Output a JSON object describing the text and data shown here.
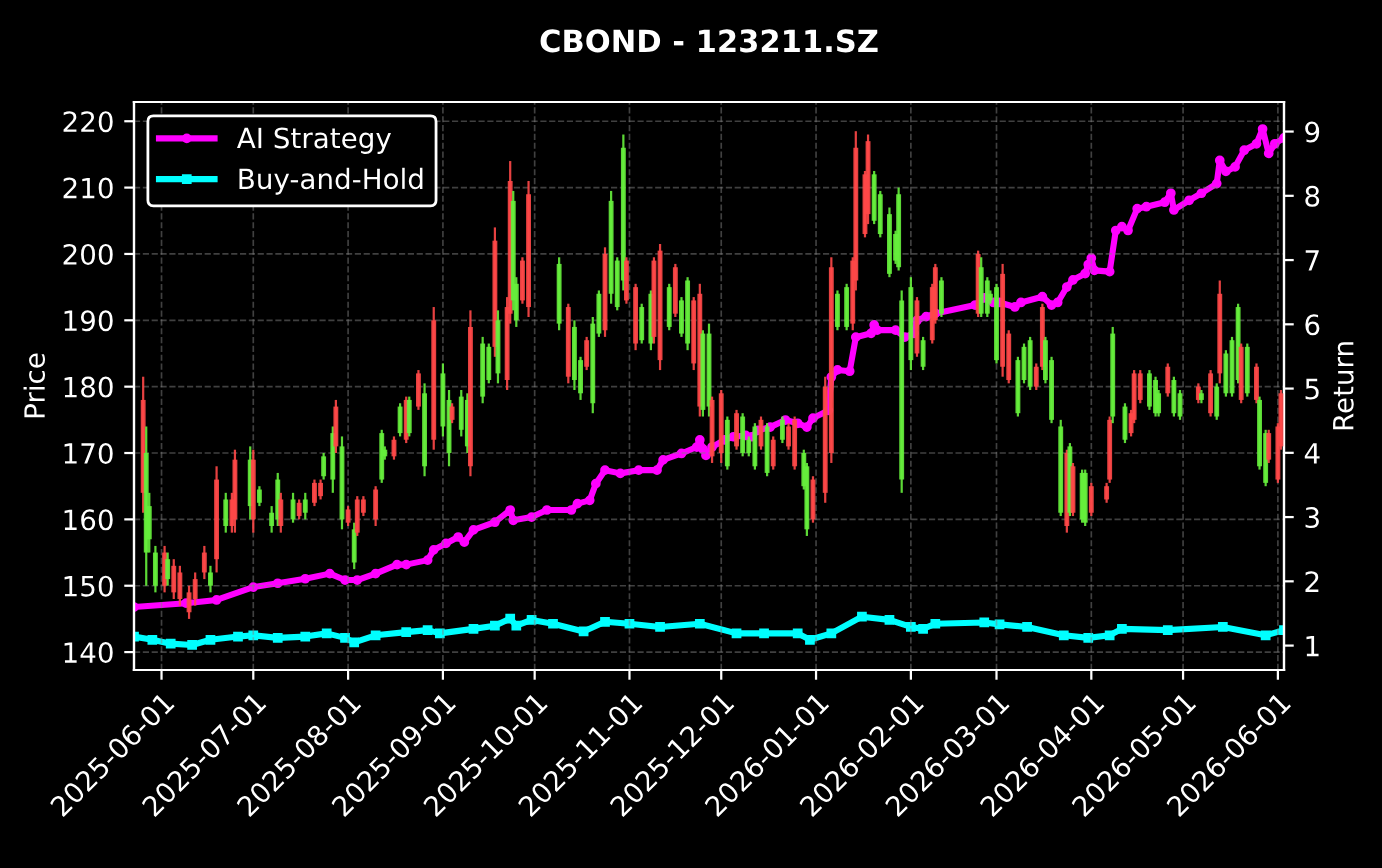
{
  "chart_data": {
    "type": "candlestick",
    "title": "CBOND - 123211.SZ",
    "ylabel": "Price",
    "y2label": "Return",
    "x": [
      "2025-05-26",
      "2025-05-27",
      "2025-05-28",
      "2025-05-30",
      "2025-06-02",
      "2025-06-03",
      "2025-06-05",
      "2025-06-07",
      "2025-06-10",
      "2025-06-12",
      "2025-06-15",
      "2025-06-17",
      "2025-06-19",
      "2025-06-22",
      "2025-06-24",
      "2025-06-25",
      "2025-06-30",
      "2025-07-01",
      "2025-07-03",
      "2025-07-07",
      "2025-07-09",
      "2025-07-10",
      "2025-07-14",
      "2025-07-16",
      "2025-07-18",
      "2025-07-21",
      "2025-07-23",
      "2025-07-24",
      "2025-07-27",
      "2025-07-28",
      "2025-07-30",
      "2025-08-01",
      "2025-08-03",
      "2025-08-04",
      "2025-08-06",
      "2025-08-10",
      "2025-08-12",
      "2025-08-13",
      "2025-08-16",
      "2025-08-18",
      "2025-08-20",
      "2025-08-21",
      "2025-08-24",
      "2025-08-26",
      "2025-08-29",
      "2025-09-01",
      "2025-09-03",
      "2025-09-04",
      "2025-09-07",
      "2025-09-09",
      "2025-09-10",
      "2025-09-14",
      "2025-09-16",
      "2025-09-18",
      "2025-09-19",
      "2025-09-22",
      "2025-09-23",
      "2025-09-24",
      "2025-09-25",
      "2025-09-27",
      "2025-09-29",
      "2025-10-09",
      "2025-10-12",
      "2025-10-14",
      "2025-10-16",
      "2025-10-18",
      "2025-10-20",
      "2025-10-22",
      "2025-10-24",
      "2025-10-26",
      "2025-10-28",
      "2025-10-30",
      "2025-10-31",
      "2025-11-03",
      "2025-11-05",
      "2025-11-08",
      "2025-11-09",
      "2025-11-11",
      "2025-11-14",
      "2025-11-16",
      "2025-11-18",
      "2025-11-20",
      "2025-11-22",
      "2025-11-24",
      "2025-11-25",
      "2025-11-27",
      "2025-11-28",
      "2025-12-01",
      "2025-12-03",
      "2025-12-06",
      "2025-12-08",
      "2025-12-10",
      "2025-12-12",
      "2025-12-14",
      "2025-12-16",
      "2025-12-18",
      "2025-12-21",
      "2025-12-23",
      "2025-12-25",
      "2025-12-28",
      "2025-12-29",
      "2025-12-31",
      "2026-01-04",
      "2026-01-06",
      "2026-01-08",
      "2026-01-11",
      "2026-01-13",
      "2026-01-14",
      "2026-01-17",
      "2026-01-18",
      "2026-01-20",
      "2026-01-22",
      "2026-01-25",
      "2026-01-27",
      "2026-01-28",
      "2026-01-29",
      "2026-02-01",
      "2026-02-03",
      "2026-02-05",
      "2026-02-08",
      "2026-02-09",
      "2026-02-11",
      "2026-02-23",
      "2026-02-24",
      "2026-02-26",
      "2026-02-27",
      "2026-03-01",
      "2026-03-03",
      "2026-03-05",
      "2026-03-08",
      "2026-03-10",
      "2026-03-12",
      "2026-03-14",
      "2026-03-16",
      "2026-03-17",
      "2026-03-19",
      "2026-03-22",
      "2026-03-24",
      "2026-03-25",
      "2026-03-26",
      "2026-03-29",
      "2026-03-30",
      "2026-04-01",
      "2026-04-06",
      "2026-04-07",
      "2026-04-08",
      "2026-04-12",
      "2026-04-14",
      "2026-04-15",
      "2026-04-17",
      "2026-04-20",
      "2026-04-22",
      "2026-04-23",
      "2026-04-26",
      "2026-04-28",
      "2026-04-30",
      "2026-05-06",
      "2026-05-07",
      "2026-05-10",
      "2026-05-12",
      "2026-05-13",
      "2026-05-15",
      "2026-05-17",
      "2026-05-19",
      "2026-05-20",
      "2026-05-22",
      "2026-05-25",
      "2026-05-26",
      "2026-05-28",
      "2026-05-29",
      "2026-06-01",
      "2026-06-02"
    ],
    "ohlc": [
      [
        178,
        181.5,
        161,
        164
      ],
      [
        155,
        174,
        150,
        170
      ],
      [
        157,
        164,
        155,
        162
      ],
      [
        150,
        156,
        149,
        155
      ],
      [
        155,
        156,
        149,
        150
      ],
      [
        151,
        155,
        150,
        154
      ],
      [
        153,
        154,
        148,
        149
      ],
      [
        152,
        153,
        147,
        148
      ],
      [
        149,
        150,
        145,
        146
      ],
      [
        151,
        152,
        147,
        148
      ],
      [
        155,
        156,
        151,
        152
      ],
      [
        150,
        153,
        149,
        152
      ],
      [
        166,
        168,
        152,
        154
      ],
      [
        159,
        164,
        158,
        163
      ],
      [
        163,
        164,
        158,
        159
      ],
      [
        169,
        170.5,
        158,
        160
      ],
      [
        162,
        171,
        160,
        169
      ],
      [
        169,
        170.5,
        158,
        160
      ],
      [
        162.5,
        165,
        162,
        164.5
      ],
      [
        159,
        162,
        158,
        161
      ],
      [
        160,
        167,
        159,
        166
      ],
      [
        163,
        164,
        158,
        159
      ],
      [
        160,
        164,
        159.5,
        163
      ],
      [
        162.5,
        163,
        160,
        160.5
      ],
      [
        161,
        164,
        160,
        163
      ],
      [
        165.5,
        166,
        162,
        162.5
      ],
      [
        165.5,
        166,
        163,
        163.5
      ],
      [
        166.5,
        170,
        166,
        169.5
      ],
      [
        166,
        174,
        164,
        173
      ],
      [
        177,
        178,
        170,
        171
      ],
      [
        160,
        172.5,
        158.5,
        171
      ],
      [
        161.5,
        162,
        159,
        159.5
      ],
      [
        153.5,
        159.5,
        152.5,
        158.5
      ],
      [
        163,
        163.5,
        157.5,
        158
      ],
      [
        163,
        163.5,
        160.5,
        161
      ],
      [
        164.5,
        165,
        159,
        160
      ],
      [
        166,
        173.5,
        165.5,
        173
      ],
      [
        169.5,
        171,
        169,
        170.5
      ],
      [
        172,
        172.5,
        169,
        169.5
      ],
      [
        173,
        177.5,
        172.5,
        177
      ],
      [
        178,
        178.5,
        171.5,
        172
      ],
      [
        173,
        178.5,
        172.5,
        178
      ],
      [
        182,
        182.5,
        176.5,
        177
      ],
      [
        168,
        180.5,
        166.5,
        179
      ],
      [
        190,
        192,
        170.5,
        172
      ],
      [
        174,
        183.5,
        172.5,
        182
      ],
      [
        170,
        179.5,
        168,
        178
      ],
      [
        177,
        177.5,
        174.5,
        175
      ],
      [
        173.5,
        179.5,
        172.5,
        178.5
      ],
      [
        171,
        179,
        170,
        178
      ],
      [
        189,
        191.5,
        166.5,
        168
      ],
      [
        178.5,
        187.5,
        177.5,
        186.5
      ],
      [
        181,
        186.5,
        180.5,
        186
      ],
      [
        202,
        204,
        184.5,
        186
      ],
      [
        182,
        191.5,
        180.5,
        190
      ],
      [
        192,
        193.5,
        179.5,
        181
      ],
      [
        211,
        214,
        189.5,
        191
      ],
      [
        193,
        209.5,
        191.5,
        208
      ],
      [
        190,
        196.5,
        189,
        195.5
      ],
      [
        199,
        199.5,
        192.5,
        193
      ],
      [
        209,
        211,
        190.5,
        192
      ],
      [
        189.5,
        199.5,
        188.5,
        198.5
      ],
      [
        192,
        192.5,
        180.5,
        181.5
      ],
      [
        181,
        190,
        179.5,
        189
      ],
      [
        179,
        184.5,
        178,
        184
      ],
      [
        187,
        187.5,
        182.5,
        183
      ],
      [
        177.5,
        190.5,
        176,
        189.5
      ],
      [
        188,
        194.5,
        187.5,
        194
      ],
      [
        200,
        201,
        187.5,
        188.5
      ],
      [
        194,
        209.5,
        192.5,
        208
      ],
      [
        192,
        199.5,
        191.5,
        199
      ],
      [
        196,
        218,
        194.5,
        216
      ],
      [
        199,
        199.5,
        192.5,
        193
      ],
      [
        195,
        195.5,
        185.5,
        186.5
      ],
      [
        187,
        192.5,
        186.5,
        192
      ],
      [
        186.5,
        194.5,
        185.5,
        194
      ],
      [
        199,
        199.5,
        186.5,
        187.5
      ],
      [
        200.5,
        201.5,
        182.5,
        184
      ],
      [
        189,
        195.5,
        188.5,
        195
      ],
      [
        198,
        198.5,
        190.5,
        191
      ],
      [
        188,
        193.5,
        187.5,
        193
      ],
      [
        186.5,
        196.5,
        185.5,
        196
      ],
      [
        193,
        193.5,
        182.5,
        183.5
      ],
      [
        194,
        195.5,
        175.5,
        177
      ],
      [
        176.5,
        188.5,
        175.5,
        188
      ],
      [
        177,
        189.5,
        175.5,
        188
      ],
      [
        178,
        178.5,
        168.5,
        169.5
      ],
      [
        179,
        179.5,
        168.5,
        170
      ],
      [
        168,
        175.5,
        167.5,
        175
      ],
      [
        176,
        176.5,
        170.5,
        171
      ],
      [
        170,
        176,
        169.5,
        175.5
      ],
      [
        170,
        172.5,
        169.5,
        172
      ],
      [
        168,
        174.5,
        167.5,
        174
      ],
      [
        175,
        175.5,
        170.5,
        171
      ],
      [
        167,
        174.5,
        166.5,
        174
      ],
      [
        172,
        172.5,
        167.5,
        168
      ],
      [
        172,
        175.5,
        171.5,
        175
      ],
      [
        174,
        174.5,
        170.5,
        171
      ],
      [
        175,
        175.5,
        167.5,
        168
      ],
      [
        165,
        170.5,
        164.5,
        170
      ],
      [
        158.5,
        168.5,
        157.5,
        168
      ],
      [
        166,
        166.5,
        159.5,
        160
      ],
      [
        180,
        181.5,
        162.5,
        164
      ],
      [
        198,
        199.5,
        168.5,
        170
      ],
      [
        189,
        194.5,
        188.5,
        194
      ],
      [
        189,
        195.5,
        188.5,
        195
      ],
      [
        199,
        199.5,
        188.5,
        189.5
      ],
      [
        216,
        218.5,
        194.5,
        196
      ],
      [
        212,
        212.5,
        202.5,
        203
      ],
      [
        217,
        218,
        204.5,
        206
      ],
      [
        205,
        212.5,
        204.5,
        212
      ],
      [
        203,
        209.5,
        202.5,
        209
      ],
      [
        197,
        207,
        196.5,
        206
      ],
      [
        199,
        203.5,
        198.5,
        203
      ],
      [
        198,
        210,
        197.5,
        209
      ],
      [
        166,
        194.5,
        164,
        193
      ],
      [
        184,
        196.5,
        182.5,
        195
      ],
      [
        193,
        193.5,
        184.5,
        185
      ],
      [
        183,
        187.5,
        182.5,
        187
      ],
      [
        195,
        195.5,
        186.5,
        187
      ],
      [
        198,
        198.5,
        189.5,
        190
      ],
      [
        191,
        196.5,
        190.5,
        196
      ],
      [
        200,
        200.5,
        190.5,
        191
      ],
      [
        191,
        199.5,
        190.5,
        198
      ],
      [
        191,
        196.5,
        190.5,
        196
      ],
      [
        193,
        194.5,
        192.5,
        194
      ],
      [
        184,
        195.5,
        183.5,
        195
      ],
      [
        197,
        198.5,
        181.5,
        183
      ],
      [
        188,
        188.5,
        180.5,
        181
      ],
      [
        176,
        184.5,
        175.5,
        184
      ],
      [
        181,
        186.5,
        180.5,
        186
      ],
      [
        180,
        187.5,
        179.5,
        187
      ],
      [
        183,
        183.5,
        179.5,
        180
      ],
      [
        192,
        192.5,
        182.5,
        183
      ],
      [
        181,
        187.5,
        180.5,
        187
      ],
      [
        175,
        184.5,
        174.5,
        184
      ],
      [
        161,
        175,
        160.5,
        174
      ],
      [
        170,
        170.5,
        158,
        159
      ],
      [
        161,
        171.5,
        160.5,
        171
      ],
      [
        168,
        168.5,
        160.5,
        161
      ],
      [
        160,
        167.5,
        159.5,
        167
      ],
      [
        159.5,
        167.5,
        159,
        167
      ],
      [
        165,
        165.5,
        160.5,
        161
      ],
      [
        165,
        165.5,
        162.5,
        163
      ],
      [
        175,
        175.5,
        165.5,
        166
      ],
      [
        175.5,
        189,
        174.5,
        188
      ],
      [
        172,
        177.5,
        171.5,
        177
      ],
      [
        176,
        176.5,
        172.5,
        173
      ],
      [
        182,
        182.5,
        174.5,
        175
      ],
      [
        182,
        182.5,
        177.5,
        178
      ],
      [
        177,
        182.5,
        176.5,
        182
      ],
      [
        176,
        181.5,
        175.5,
        181
      ],
      [
        176,
        179.5,
        175.5,
        179
      ],
      [
        183,
        183.5,
        178.5,
        179
      ],
      [
        176,
        181.5,
        175.5,
        181
      ],
      [
        175.5,
        179.5,
        175,
        179
      ],
      [
        180,
        180.5,
        177.5,
        178
      ],
      [
        178,
        179.5,
        177.5,
        179
      ],
      [
        182,
        182.5,
        175.5,
        176
      ],
      [
        175.5,
        180.5,
        175,
        180
      ],
      [
        194,
        196,
        180.5,
        182
      ],
      [
        179,
        185.5,
        178.5,
        185
      ],
      [
        179,
        187.5,
        178.5,
        187
      ],
      [
        181,
        192.5,
        180.5,
        192
      ],
      [
        186,
        186.5,
        177.5,
        178
      ],
      [
        179,
        186.5,
        178.5,
        186
      ],
      [
        183,
        183.5,
        177.5,
        178
      ],
      [
        168,
        178.5,
        167.5,
        178
      ],
      [
        165.5,
        173.5,
        165,
        173
      ],
      [
        173,
        173.5,
        168.5,
        169
      ],
      [
        174,
        174.5,
        165.5,
        166
      ],
      [
        179,
        179.5,
        170.5,
        171
      ]
    ],
    "series": [
      {
        "name": "AI Strategy",
        "type": "line",
        "axis": "y2",
        "color": "#ff00ff",
        "marker": "circle",
        "x": [
          "2025-05-23",
          "2025-06-09",
          "2025-06-19",
          "2025-07-01",
          "2025-07-09",
          "2025-07-18",
          "2025-07-26",
          "2025-07-31",
          "2025-08-04",
          "2025-08-10",
          "2025-08-17",
          "2025-08-20",
          "2025-08-27",
          "2025-08-29",
          "2025-09-02",
          "2025-09-06",
          "2025-09-08",
          "2025-09-11",
          "2025-09-18",
          "2025-09-23",
          "2025-09-24",
          "2025-09-30",
          "2025-10-05",
          "2025-10-13",
          "2025-10-15",
          "2025-10-19",
          "2025-10-21",
          "2025-10-24",
          "2025-10-29",
          "2025-11-04",
          "2025-11-10",
          "2025-11-12",
          "2025-11-18",
          "2025-11-23",
          "2025-11-24",
          "2025-11-25",
          "2025-11-26",
          "2025-11-28",
          "2025-12-02",
          "2025-12-05",
          "2025-12-09",
          "2025-12-11",
          "2025-12-13",
          "2025-12-17",
          "2025-12-22",
          "2025-12-26",
          "2025-12-29",
          "2025-12-31",
          "2026-01-05",
          "2026-01-06",
          "2026-01-08",
          "2026-01-12",
          "2026-01-14",
          "2026-01-19",
          "2026-01-20",
          "2026-01-21",
          "2026-01-27",
          "2026-01-30",
          "2026-02-02",
          "2026-02-03",
          "2026-02-06",
          "2026-02-09",
          "2026-02-22",
          "2026-02-25",
          "2026-02-28",
          "2026-03-02",
          "2026-03-07",
          "2026-03-09",
          "2026-03-16",
          "2026-03-19",
          "2026-03-21",
          "2026-03-24",
          "2026-03-26",
          "2026-03-30",
          "2026-03-31",
          "2026-04-01",
          "2026-04-02",
          "2026-04-07",
          "2026-04-09",
          "2026-04-11",
          "2026-04-13",
          "2026-04-16",
          "2026-04-19",
          "2026-04-25",
          "2026-04-27",
          "2026-04-28",
          "2026-05-03",
          "2026-05-07",
          "2026-05-12",
          "2026-05-13",
          "2026-05-15",
          "2026-05-18",
          "2026-05-21",
          "2026-05-25",
          "2026-05-27",
          "2026-05-29",
          "2026-05-31",
          "2026-06-03"
        ],
        "values": [
          1.6,
          1.66,
          1.71,
          1.91,
          1.97,
          2.04,
          2.12,
          2.02,
          2.02,
          2.12,
          2.26,
          2.26,
          2.33,
          2.49,
          2.59,
          2.69,
          2.61,
          2.8,
          2.92,
          3.11,
          2.95,
          3.0,
          3.11,
          3.11,
          3.21,
          3.26,
          3.52,
          3.73,
          3.68,
          3.73,
          3.73,
          3.89,
          3.99,
          4.09,
          4.2,
          4.06,
          3.96,
          4.09,
          4.2,
          4.25,
          4.27,
          4.25,
          4.35,
          4.4,
          4.51,
          4.46,
          4.4,
          4.54,
          4.66,
          5.18,
          5.29,
          5.27,
          5.8,
          5.86,
          5.99,
          5.91,
          5.91,
          5.8,
          5.86,
          6.06,
          6.12,
          6.17,
          6.3,
          6.41,
          6.34,
          6.34,
          6.27,
          6.34,
          6.43,
          6.3,
          6.34,
          6.58,
          6.69,
          6.79,
          6.93,
          7.03,
          6.84,
          6.82,
          7.46,
          7.52,
          7.46,
          7.8,
          7.83,
          7.9,
          8.04,
          7.78,
          7.93,
          8.04,
          8.19,
          8.55,
          8.38,
          8.45,
          8.71,
          8.81,
          9.04,
          8.66,
          8.81,
          8.9
        ]
      },
      {
        "name": "Buy-and-Hold",
        "type": "line",
        "axis": "y2",
        "color": "#00ffff",
        "marker": "square",
        "x": [
          "2025-05-23",
          "2025-05-29",
          "2025-06-04",
          "2025-06-11",
          "2025-06-17",
          "2025-06-26",
          "2025-07-01",
          "2025-07-09",
          "2025-07-18",
          "2025-07-25",
          "2025-07-31",
          "2025-08-03",
          "2025-08-10",
          "2025-08-20",
          "2025-08-27",
          "2025-08-31",
          "2025-09-11",
          "2025-09-18",
          "2025-09-23",
          "2025-09-25",
          "2025-09-30",
          "2025-10-07",
          "2025-10-17",
          "2025-10-24",
          "2025-11-01",
          "2025-11-11",
          "2025-11-24",
          "2025-12-06",
          "2025-12-15",
          "2025-12-26",
          "2025-12-30",
          "2026-01-06",
          "2026-01-16",
          "2026-01-25",
          "2026-02-01",
          "2026-02-05",
          "2026-02-09",
          "2026-02-25",
          "2026-03-02",
          "2026-03-11",
          "2026-03-23",
          "2026-03-31",
          "2026-04-07",
          "2026-04-11",
          "2026-04-26",
          "2026-05-14",
          "2026-05-28",
          "2026-06-03"
        ],
        "values": [
          1.14,
          1.09,
          1.03,
          1.01,
          1.09,
          1.14,
          1.16,
          1.12,
          1.14,
          1.19,
          1.12,
          1.05,
          1.16,
          1.21,
          1.24,
          1.19,
          1.26,
          1.31,
          1.42,
          1.31,
          1.4,
          1.34,
          1.22,
          1.37,
          1.34,
          1.29,
          1.34,
          1.19,
          1.19,
          1.19,
          1.09,
          1.19,
          1.45,
          1.4,
          1.29,
          1.26,
          1.34,
          1.36,
          1.33,
          1.29,
          1.16,
          1.12,
          1.16,
          1.26,
          1.24,
          1.29,
          1.16,
          1.24
        ]
      }
    ],
    "xlim": [
      "2025-05-23",
      "2026-06-03"
    ],
    "xticks": [
      "2025-06-01",
      "2025-07-01",
      "2025-08-01",
      "2025-09-01",
      "2025-10-01",
      "2025-11-01",
      "2025-12-01",
      "2026-01-01",
      "2026-02-01",
      "2026-03-01",
      "2026-04-01",
      "2026-05-01",
      "2026-06-01"
    ],
    "ylim": [
      137.3,
      222.9
    ],
    "yticks": [
      140,
      150,
      160,
      170,
      180,
      190,
      200,
      210,
      220
    ],
    "y2lim": [
      0.62,
      9.46
    ],
    "y2ticks": [
      1,
      2,
      3,
      4,
      5,
      6,
      7,
      8,
      9
    ],
    "grid": true,
    "legend": "top left"
  }
}
